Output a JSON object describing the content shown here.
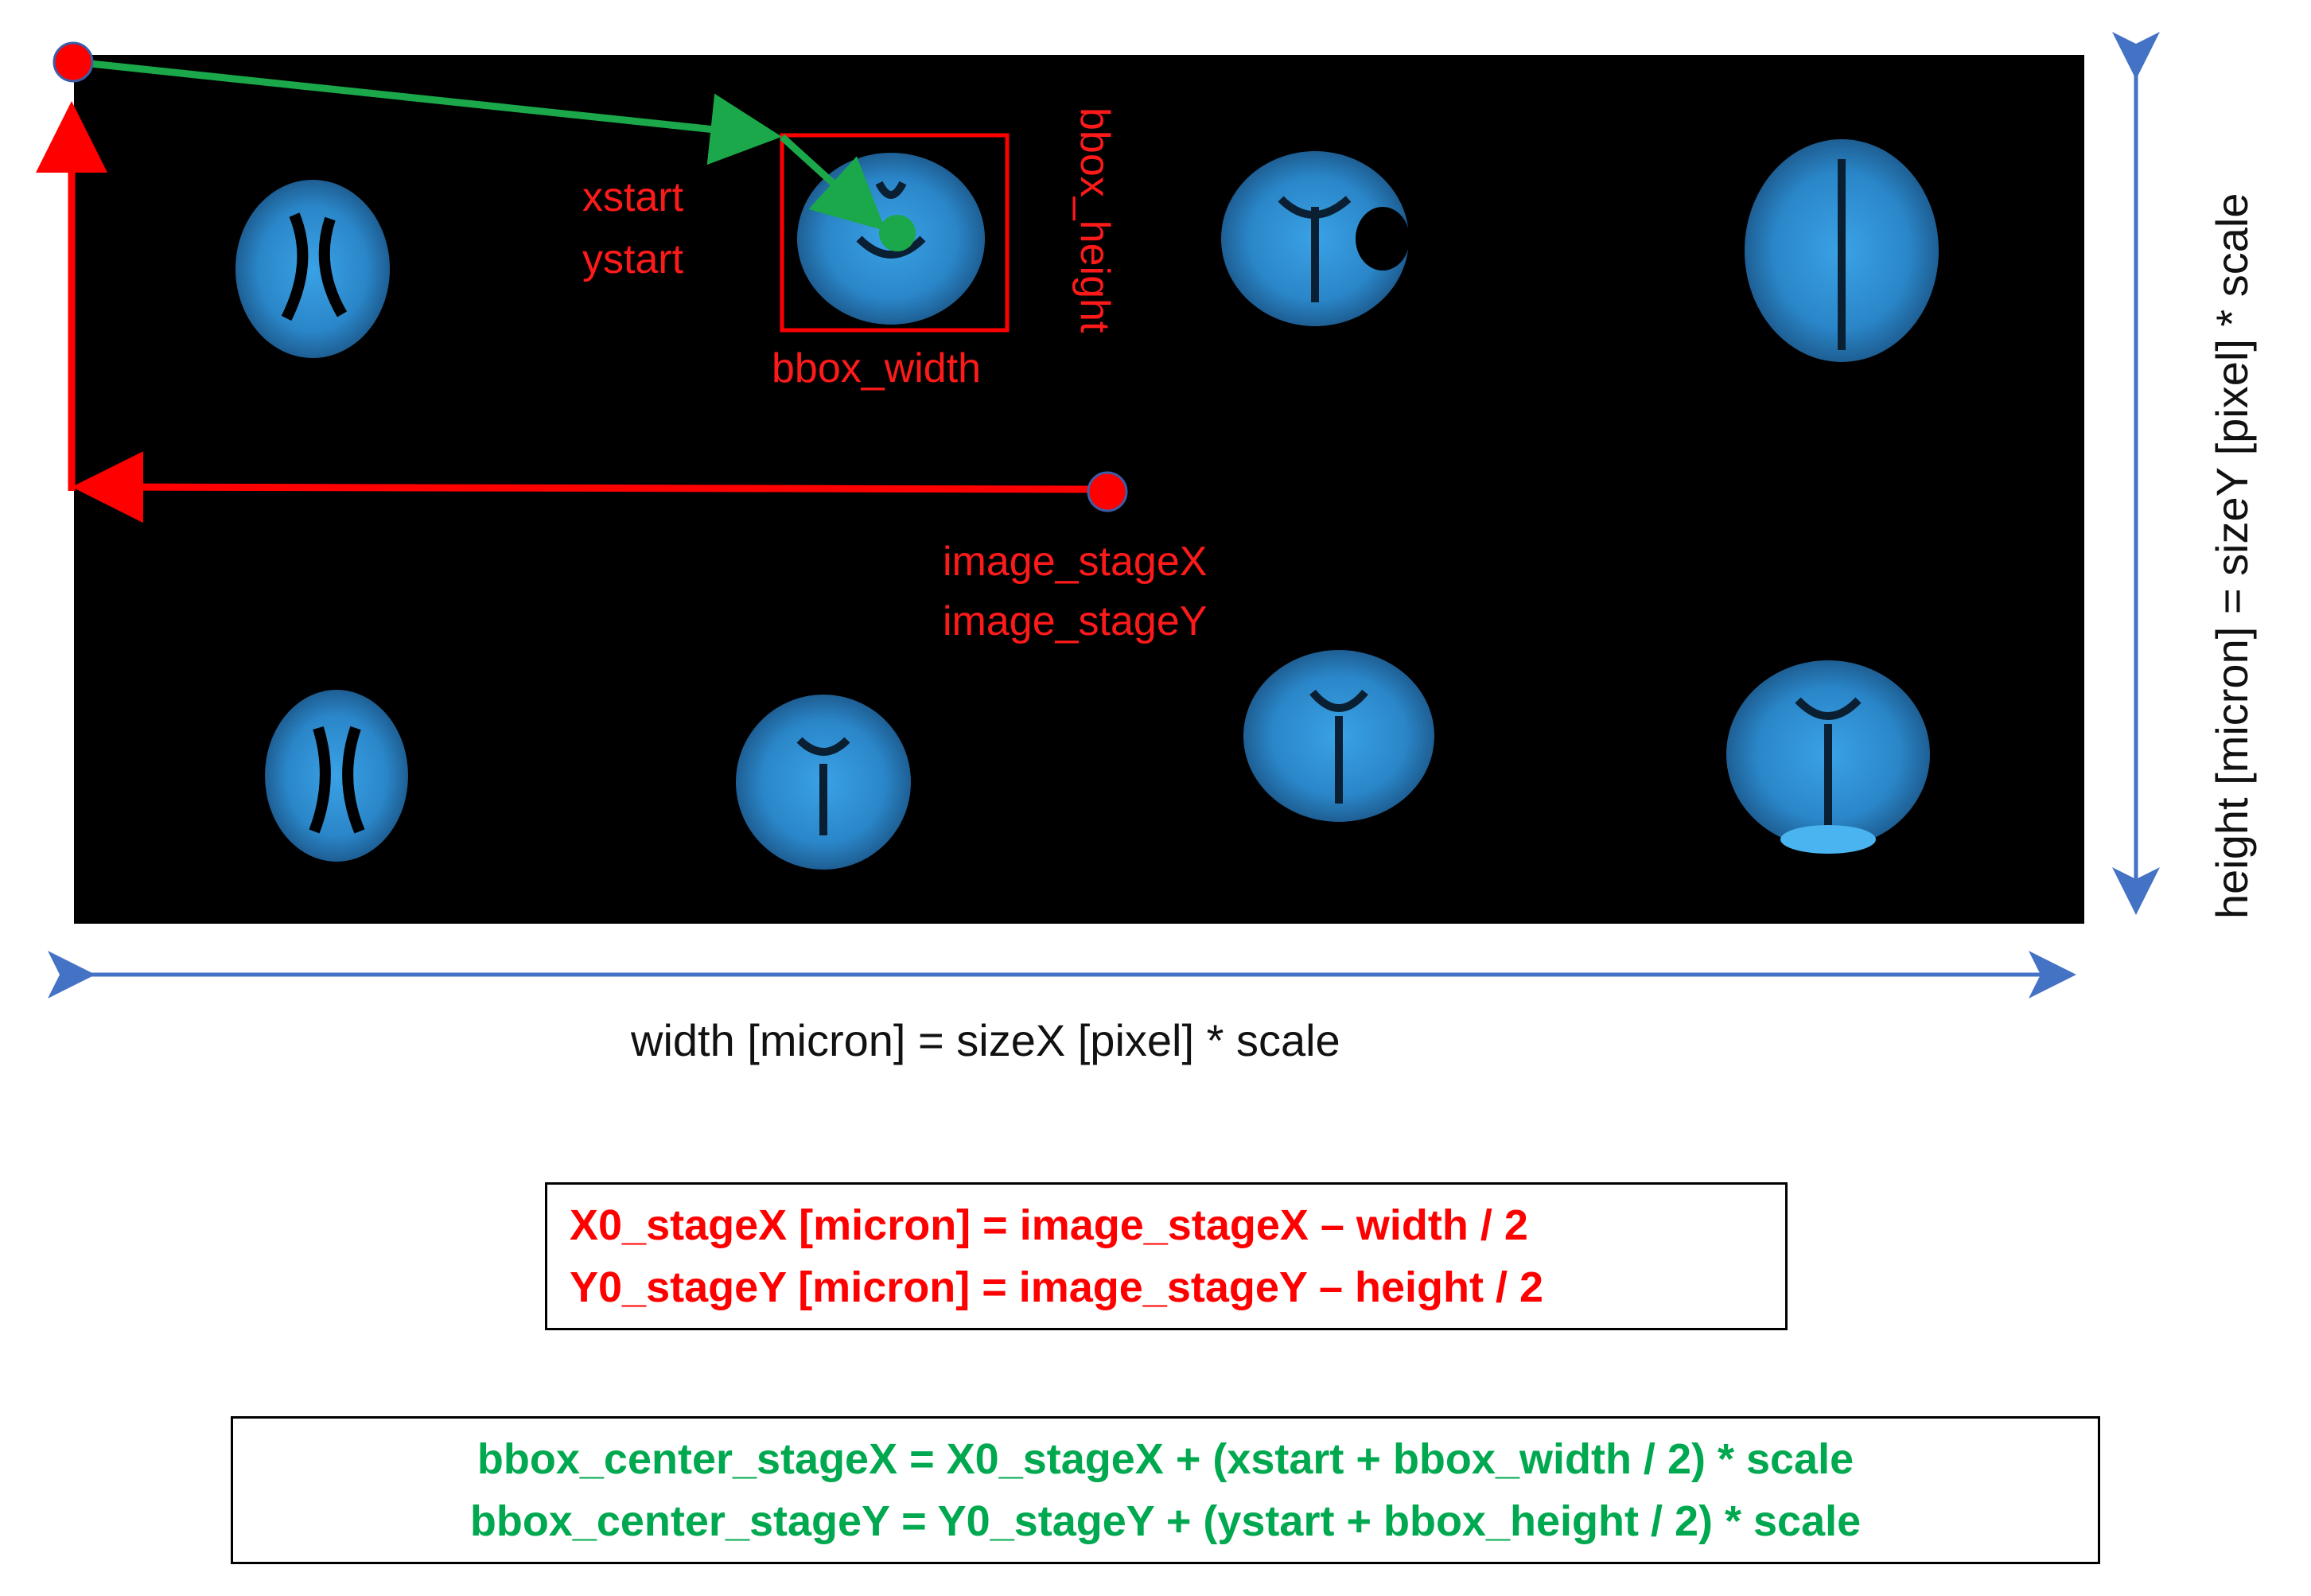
{
  "diagram": {
    "labels": {
      "xstart": "xstart",
      "ystart": "ystart",
      "bbox_width": "bbox_width",
      "bbox_height": "bbox_height",
      "image_stageX": "image_stageX",
      "image_stageY": "image_stageY",
      "width_axis": "width [micron] = sizeX [pixel] * scale",
      "height_axis": "height [micron] = sizeY [pixel] * scale"
    },
    "formulas_red": [
      "X0_stageX [micron] = image_stageX – width / 2",
      "Y0_stageY [micron] = image_stageY – height / 2"
    ],
    "formulas_green": [
      "bbox_center_stageX = X0_stageX + (xstart + bbox_width / 2) * scale",
      "bbox_center_stageY = Y0_stageY + (ystart + bbox_height / 2) * scale"
    ],
    "colors": {
      "image_bg": "#000000",
      "tissue": "#2f8fd0",
      "red": "#ff0000",
      "green": "#1aa84a",
      "axis_blue": "#4472c4"
    },
    "icons": [
      "origin-point-icon",
      "stage-center-point-icon",
      "bbox-center-point-icon",
      "tissue-section-icon"
    ]
  }
}
